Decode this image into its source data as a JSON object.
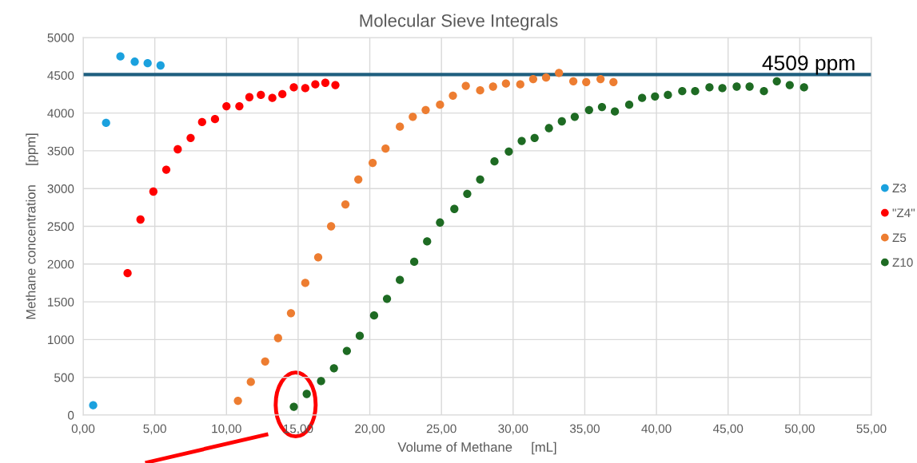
{
  "chart_data": {
    "type": "scatter",
    "title": "Molecular Sieve Integrals",
    "xlabel": "Volume of Methane     [mL]",
    "ylabel": "Methane concentration     [ppm]",
    "series": [
      {
        "name": "Z3",
        "color": "#1ba1de",
        "x": [
          0.7,
          1.6,
          2.6,
          3.6,
          4.5,
          5.4
        ],
        "values": [
          130,
          3870,
          4750,
          4680,
          4660,
          4630
        ]
      },
      {
        "name": "\"Z4\"",
        "color": "#ff0000",
        "x": [
          3.1,
          4.0,
          4.9,
          5.8,
          6.6,
          7.5,
          8.3,
          9.2,
          10.0,
          10.9,
          11.6,
          12.4,
          13.2,
          13.9,
          14.7,
          15.5,
          16.2,
          16.9,
          17.6
        ],
        "values": [
          1880,
          2590,
          2960,
          3250,
          3520,
          3670,
          3880,
          3920,
          4090,
          4090,
          4210,
          4240,
          4200,
          4250,
          4340,
          4330,
          4380,
          4400,
          4370
        ]
      },
      {
        "name": "Z5",
        "color": "#ed7d31",
        "x": [
          10.8,
          11.7,
          12.7,
          13.6,
          14.5,
          15.5,
          16.4,
          17.3,
          18.3,
          19.2,
          20.2,
          21.1,
          22.1,
          23.0,
          23.9,
          24.9,
          25.8,
          26.7,
          27.7,
          28.6,
          29.5,
          30.5,
          31.4,
          32.3,
          33.2,
          34.2,
          35.1,
          36.1,
          37.0
        ],
        "values": [
          190,
          440,
          710,
          1020,
          1350,
          1750,
          2090,
          2500,
          2790,
          3120,
          3340,
          3530,
          3820,
          3950,
          4040,
          4110,
          4230,
          4360,
          4300,
          4350,
          4390,
          4380,
          4450,
          4470,
          4530,
          4420,
          4410,
          4450,
          4410
        ]
      },
      {
        "name": "Z10",
        "color": "#1e6b23",
        "x": [
          14.7,
          15.6,
          16.6,
          17.5,
          18.4,
          19.3,
          20.3,
          21.2,
          22.1,
          23.1,
          24.0,
          24.9,
          25.9,
          26.8,
          27.7,
          28.7,
          29.7,
          30.6,
          31.5,
          32.5,
          33.4,
          34.3,
          35.3,
          36.2,
          37.1,
          38.1,
          39.0,
          39.9,
          40.8,
          41.8,
          42.7,
          43.7,
          44.6,
          45.6,
          46.5,
          47.5,
          48.4,
          49.3,
          50.3
        ],
        "values": [
          110,
          280,
          450,
          620,
          850,
          1050,
          1320,
          1540,
          1790,
          2030,
          2300,
          2550,
          2730,
          2930,
          3120,
          3360,
          3490,
          3630,
          3670,
          3800,
          3890,
          3950,
          4040,
          4080,
          4020,
          4110,
          4200,
          4220,
          4240,
          4290,
          4290,
          4340,
          4330,
          4350,
          4350,
          4290,
          4420,
          4370,
          4340
        ]
      }
    ],
    "xlim": [
      0,
      55
    ],
    "xticks": [
      {
        "value": 0,
        "label": "0,00"
      },
      {
        "value": 5,
        "label": "5,00"
      },
      {
        "value": 10,
        "label": "10,00"
      },
      {
        "value": 15,
        "label": "15,00"
      },
      {
        "value": 20,
        "label": "20,00"
      },
      {
        "value": 25,
        "label": "25,00"
      },
      {
        "value": 30,
        "label": "30,00"
      },
      {
        "value": 35,
        "label": "35,00"
      },
      {
        "value": 40,
        "label": "40,00"
      },
      {
        "value": 45,
        "label": "45,00"
      },
      {
        "value": 50,
        "label": "50,00"
      },
      {
        "value": 55,
        "label": "55,00"
      }
    ],
    "ylim": [
      0,
      5000
    ],
    "yticks": [
      0,
      500,
      1000,
      1500,
      2000,
      2500,
      3000,
      3500,
      4000,
      4500,
      5000
    ],
    "ref_lines": [
      {
        "axis": "y",
        "value": 4509,
        "label": "4509 ppm",
        "color": "#1f5f7f"
      }
    ],
    "grid": true,
    "legend": "right",
    "marker": "circle"
  }
}
